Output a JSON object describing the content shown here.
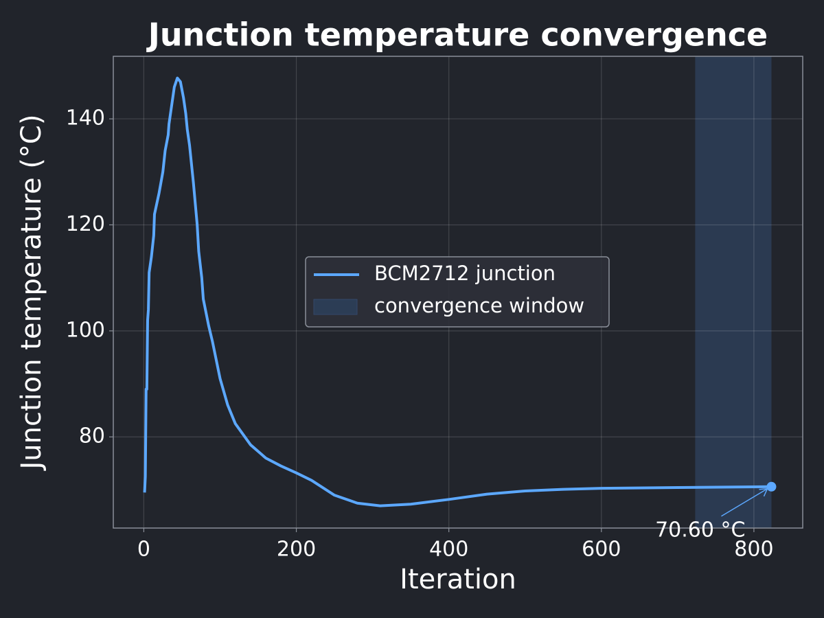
{
  "chart_data": {
    "type": "line",
    "title": "Junction temperature convergence",
    "x_label": "Iteration",
    "y_label": "Junction temperature (°C)",
    "x": [
      1,
      2,
      3,
      4,
      5,
      6,
      7,
      10,
      13,
      14,
      20,
      25,
      28,
      32,
      33,
      37,
      40,
      44,
      48,
      52,
      55,
      57,
      60,
      65,
      70,
      72,
      76,
      78,
      85,
      90,
      100,
      110,
      120,
      140,
      160,
      180,
      200,
      220,
      250,
      280,
      310,
      350,
      400,
      450,
      500,
      550,
      600,
      700,
      823
    ],
    "series": [
      {
        "name": "BCM2712 junction",
        "color": "#5ca8ff",
        "values": [
          69.5,
          72.5,
          89,
          89,
          102,
          104,
          111,
          114,
          118,
          122,
          126,
          130,
          134,
          137,
          139,
          143,
          146,
          147.7,
          147,
          144,
          141,
          138,
          135,
          128,
          120,
          115,
          110,
          106,
          101,
          98,
          91,
          86,
          82.5,
          78.5,
          76,
          74.5,
          73.2,
          71.8,
          69,
          67.5,
          67,
          67.3,
          68.2,
          69.2,
          69.8,
          70.1,
          70.3,
          70.45,
          70.6
        ]
      }
    ],
    "span": {
      "name": "convergence window",
      "range": [
        723,
        823
      ],
      "color": "#2c3d55"
    },
    "annotations": [
      {
        "text": "70.60 °C"
      }
    ],
    "xlim": [
      -40,
      864
    ],
    "ylim": [
      62.8,
      151.8
    ],
    "xticks": [
      0,
      200,
      400,
      600,
      800
    ],
    "yticks": [
      80,
      100,
      120,
      140
    ],
    "grid": true,
    "legend": "center"
  }
}
